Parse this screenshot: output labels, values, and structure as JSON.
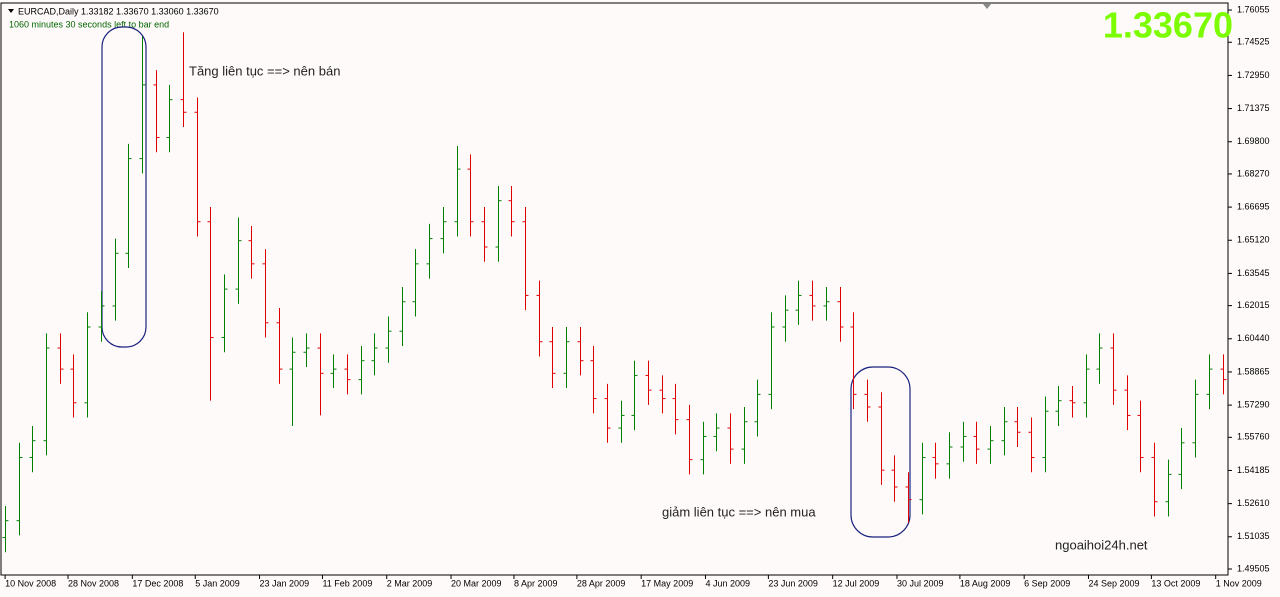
{
  "chart_data": {
    "type": "ohlc",
    "info": "EURCAD,Daily  1.33182 1.33670 1.33060 1.33670",
    "timer": "1060 minutes 30 seconds left to bar end",
    "last_price": "1.33670",
    "annotations": [
      "Tăng liên tục ==> nên bán",
      "giảm liên tục ==> nên mua",
      "ngoaihoi24h.net"
    ],
    "up_color": "#008000",
    "down_color": "#e00000",
    "open": [
      1.51,
      1.518,
      1.548,
      1.556,
      1.6,
      1.59,
      1.574,
      1.61,
      1.62,
      1.645,
      1.69,
      1.725,
      1.7,
      1.718,
      1.712,
      1.66,
      1.605,
      1.628,
      1.651,
      1.64,
      1.612,
      1.59,
      1.598,
      1.6,
      1.588,
      1.59,
      1.585,
      1.594,
      1.6,
      1.608,
      1.622,
      1.64,
      1.652,
      1.66,
      1.685,
      1.66,
      1.648,
      1.67,
      1.66,
      1.625,
      1.603,
      1.588,
      1.603,
      1.594,
      1.576,
      1.562,
      1.568,
      1.587,
      1.58,
      1.576,
      1.566,
      1.547,
      1.558,
      1.562,
      1.552,
      1.565,
      1.578,
      1.61,
      1.618,
      1.625,
      1.62,
      1.622,
      1.61,
      1.578,
      1.572,
      1.542,
      1.534,
      1.528,
      1.548,
      1.545,
      1.553,
      1.558,
      1.552,
      1.556,
      1.565,
      1.56,
      1.548,
      1.57,
      1.575,
      1.574,
      1.59,
      1.6,
      1.58,
      1.568,
      1.548,
      1.527,
      1.54,
      1.555,
      1.578,
      1.59
    ],
    "high": [
      1.525,
      1.555,
      1.563,
      1.607,
      1.607,
      1.597,
      1.617,
      1.627,
      1.652,
      1.697,
      1.748,
      1.732,
      1.725,
      1.75,
      1.719,
      1.667,
      1.635,
      1.662,
      1.658,
      1.647,
      1.619,
      1.605,
      1.607,
      1.607,
      1.597,
      1.597,
      1.601,
      1.607,
      1.615,
      1.629,
      1.647,
      1.659,
      1.667,
      1.696,
      1.692,
      1.667,
      1.677,
      1.677,
      1.667,
      1.632,
      1.61,
      1.61,
      1.61,
      1.601,
      1.583,
      1.575,
      1.594,
      1.594,
      1.587,
      1.583,
      1.573,
      1.565,
      1.569,
      1.569,
      1.572,
      1.585,
      1.617,
      1.625,
      1.632,
      1.632,
      1.629,
      1.629,
      1.617,
      1.585,
      1.579,
      1.549,
      1.541,
      1.555,
      1.555,
      1.56,
      1.565,
      1.565,
      1.563,
      1.572,
      1.572,
      1.567,
      1.577,
      1.582,
      1.582,
      1.597,
      1.607,
      1.607,
      1.587,
      1.575,
      1.555,
      1.547,
      1.562,
      1.585,
      1.597,
      1.597
    ],
    "low": [
      1.503,
      1.511,
      1.541,
      1.549,
      1.583,
      1.567,
      1.567,
      1.603,
      1.613,
      1.638,
      1.683,
      1.693,
      1.693,
      1.705,
      1.653,
      1.575,
      1.598,
      1.621,
      1.633,
      1.605,
      1.583,
      1.563,
      1.591,
      1.568,
      1.581,
      1.578,
      1.578,
      1.587,
      1.593,
      1.601,
      1.615,
      1.633,
      1.645,
      1.653,
      1.653,
      1.641,
      1.641,
      1.653,
      1.618,
      1.596,
      1.581,
      1.581,
      1.587,
      1.569,
      1.555,
      1.555,
      1.561,
      1.573,
      1.569,
      1.559,
      1.54,
      1.54,
      1.551,
      1.545,
      1.545,
      1.558,
      1.571,
      1.603,
      1.611,
      1.613,
      1.613,
      1.603,
      1.571,
      1.565,
      1.535,
      1.527,
      1.517,
      1.521,
      1.538,
      1.538,
      1.546,
      1.545,
      1.545,
      1.549,
      1.553,
      1.541,
      1.541,
      1.563,
      1.567,
      1.567,
      1.583,
      1.573,
      1.561,
      1.541,
      1.52,
      1.52,
      1.533,
      1.548,
      1.571,
      1.578
    ],
    "close": [
      1.518,
      1.548,
      1.556,
      1.6,
      1.59,
      1.574,
      1.61,
      1.62,
      1.645,
      1.69,
      1.725,
      1.7,
      1.718,
      1.712,
      1.66,
      1.605,
      1.628,
      1.651,
      1.64,
      1.612,
      1.59,
      1.598,
      1.6,
      1.588,
      1.59,
      1.585,
      1.594,
      1.6,
      1.608,
      1.622,
      1.64,
      1.652,
      1.66,
      1.685,
      1.66,
      1.648,
      1.67,
      1.66,
      1.625,
      1.603,
      1.588,
      1.603,
      1.594,
      1.576,
      1.562,
      1.568,
      1.587,
      1.58,
      1.576,
      1.566,
      1.547,
      1.558,
      1.562,
      1.552,
      1.565,
      1.578,
      1.61,
      1.618,
      1.625,
      1.62,
      1.622,
      1.61,
      1.578,
      1.572,
      1.542,
      1.534,
      1.528,
      1.548,
      1.545,
      1.553,
      1.558,
      1.552,
      1.556,
      1.565,
      1.56,
      1.548,
      1.57,
      1.575,
      1.574,
      1.59,
      1.6,
      1.58,
      1.568,
      1.548,
      1.527,
      1.54,
      1.555,
      1.578,
      1.59,
      1.585
    ],
    "xlim": [
      -0.3,
      89.4
    ],
    "xticks": [
      {
        "value": 0,
        "label": "10 Nov 2008"
      },
      {
        "value": 4.6,
        "label": "28 Nov 2008"
      },
      {
        "value": 9.3,
        "label": "17 Dec 2008"
      },
      {
        "value": 13.9,
        "label": "5 Jan 2009"
      },
      {
        "value": 18.6,
        "label": "23 Jan 2009"
      },
      {
        "value": 23.2,
        "label": "11 Feb 2009"
      },
      {
        "value": 27.9,
        "label": "2 Mar 2009"
      },
      {
        "value": 32.6,
        "label": "20 Mar 2009"
      },
      {
        "value": 37.2,
        "label": "8 Apr 2009"
      },
      {
        "value": 41.8,
        "label": "28 Apr 2009"
      },
      {
        "value": 46.5,
        "label": "17 May 2009"
      },
      {
        "value": 51.2,
        "label": "4 Jun 2009"
      },
      {
        "value": 55.8,
        "label": "23 Jun 2009"
      },
      {
        "value": 60.5,
        "label": "12 Jul 2009"
      },
      {
        "value": 65.2,
        "label": "30 Jul 2009"
      },
      {
        "value": 69.8,
        "label": "18 Aug 2009"
      },
      {
        "value": 74.5,
        "label": "6 Sep 2009"
      },
      {
        "value": 79.2,
        "label": "24 Sep 2009"
      },
      {
        "value": 83.8,
        "label": "13 Oct 2009"
      },
      {
        "value": 88.5,
        "label": "1 Nov 2009"
      }
    ],
    "ylim": [
      1.4922,
      1.7639
    ],
    "yticks": [
      1.76055,
      1.74525,
      {
        "value": 1.7295,
        "label": "1.72950"
      },
      1.71375,
      {
        "value": 1.698,
        "label": "1.69800"
      },
      {
        "value": 1.6827,
        "label": "1.68270"
      },
      1.66695,
      {
        "value": 1.6512,
        "label": "1.65120"
      },
      1.63545,
      1.62015,
      {
        "value": 1.6044,
        "label": "1.60440"
      },
      1.58865,
      {
        "value": 1.5729,
        "label": "1.57290"
      },
      {
        "value": 1.5576,
        "label": "1.55760"
      },
      1.54185,
      {
        "value": 1.5261,
        "label": "1.52610"
      },
      1.51035,
      1.49505
    ]
  }
}
